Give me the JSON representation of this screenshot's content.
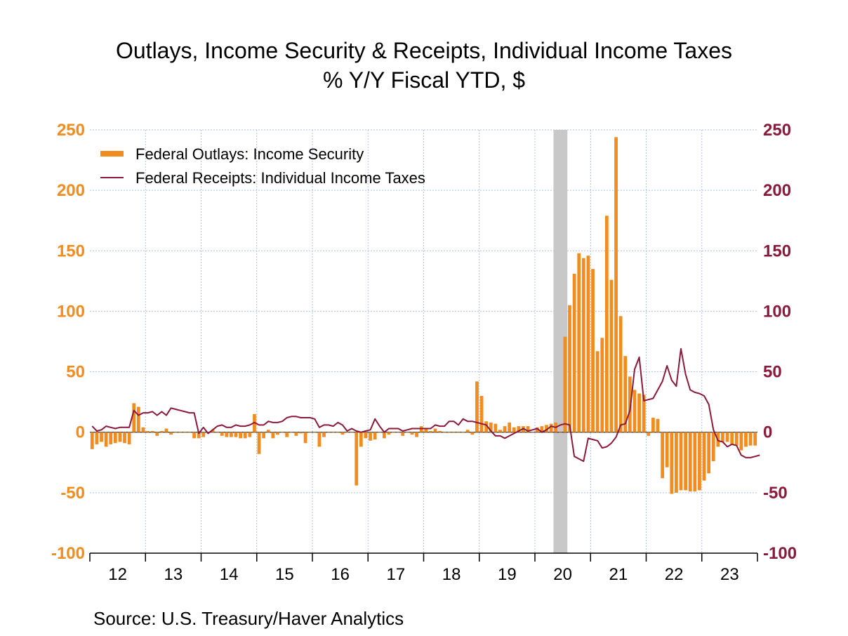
{
  "title_line1": "Outlays, Income Security & Receipts, Individual Income Taxes",
  "title_line2": "% Y/Y   Fiscal YTD, $",
  "source": "Source:  U.S. Treasury/Haver Analytics",
  "colors": {
    "bars": "#f28c1e",
    "line": "#8b1a3a",
    "left_axis": "#f28c1e",
    "right_axis": "#8b1a3a",
    "grid": "#a9c4e8",
    "recession": "#c8c8c8"
  },
  "chart_data": {
    "type": "bar",
    "ylim": [
      -100,
      250
    ],
    "yticks": [
      250,
      200,
      150,
      100,
      50,
      0,
      -50,
      -100
    ],
    "y2ticks": [
      250,
      200,
      150,
      100,
      50,
      0,
      -50,
      -100
    ],
    "x_start": "2011-10",
    "x_end": "2023-09",
    "xticks": [
      "12",
      "13",
      "14",
      "15",
      "16",
      "17",
      "18",
      "19",
      "20",
      "21",
      "22",
      "23"
    ],
    "grid": true,
    "legend_position": "top-left",
    "recession_band": [
      "2020-02",
      "2020-04"
    ],
    "series": [
      {
        "name": "Federal Outlays: Income Security",
        "type": "bar",
        "axis": "left",
        "start": "2011-10",
        "values": [
          -14,
          -10,
          -8,
          -12,
          -10,
          -9,
          -8,
          -9,
          -10,
          24,
          21,
          4,
          1,
          1,
          -3,
          1,
          3,
          -2,
          0,
          0,
          0,
          0,
          -5,
          -5,
          -4,
          0,
          2,
          0,
          -3,
          -4,
          -4,
          -4,
          -5,
          -5,
          -4,
          15,
          -18,
          -5,
          2,
          -5,
          -2,
          0,
          -4,
          0,
          -3,
          -1,
          -9,
          0,
          0,
          -12,
          -4,
          0,
          0,
          0,
          -2,
          0,
          0,
          -44,
          -12,
          -5,
          -7,
          -6,
          0,
          -5,
          -2,
          0,
          0,
          -3,
          0,
          -2,
          -4,
          5,
          3,
          1,
          3,
          1,
          0,
          0,
          0,
          0,
          0,
          2,
          -2,
          42,
          30,
          9,
          8,
          7,
          2,
          5,
          8,
          4,
          5,
          5,
          5,
          0,
          4,
          5,
          6,
          7,
          8,
          0,
          79,
          105,
          131,
          148,
          144,
          146,
          135,
          67,
          78,
          179,
          126,
          244,
          96,
          63,
          46,
          35,
          32,
          31,
          -3,
          12,
          11,
          -38,
          -29,
          -51,
          -50,
          -48,
          -48,
          -49,
          -49,
          -48,
          -40,
          -34,
          -24,
          -12,
          -8,
          -8,
          -10,
          -11,
          -15,
          -12,
          -11,
          -11
        ]
      },
      {
        "name": "Federal Receipts: Individual Income Taxes",
        "type": "line",
        "axis": "right",
        "start": "2011-10",
        "values": [
          5,
          1,
          2,
          5,
          4,
          3,
          4,
          4,
          4,
          18,
          14,
          16,
          16,
          17,
          14,
          17,
          14,
          20,
          19,
          18,
          17,
          16,
          16,
          -1,
          4,
          -1,
          2,
          5,
          6,
          4,
          4,
          6,
          5,
          5,
          6,
          8,
          6,
          6,
          9,
          8,
          8,
          9,
          12,
          13,
          13,
          12,
          12,
          12,
          11,
          4,
          6,
          6,
          5,
          8,
          6,
          1,
          3,
          1,
          0,
          1,
          2,
          11,
          5,
          0,
          3,
          3,
          3,
          1,
          2,
          3,
          3,
          3,
          3,
          3,
          6,
          5,
          5,
          9,
          9,
          6,
          11,
          9,
          9,
          8,
          7,
          6,
          1,
          -3,
          -3,
          -5,
          -3,
          -1,
          1,
          3,
          1,
          2,
          3,
          0,
          2,
          5,
          4,
          6,
          7,
          6,
          -20,
          -22,
          -24,
          -5,
          -6,
          -7,
          -13,
          -12,
          -9,
          -4,
          6,
          7,
          18,
          52,
          62,
          26,
          27,
          28,
          35,
          42,
          55,
          43,
          38,
          69,
          48,
          35,
          33,
          32,
          30,
          23,
          2,
          -7,
          -8,
          -12,
          -10,
          -11,
          -19,
          -21,
          -21,
          -20,
          -19
        ]
      }
    ]
  }
}
